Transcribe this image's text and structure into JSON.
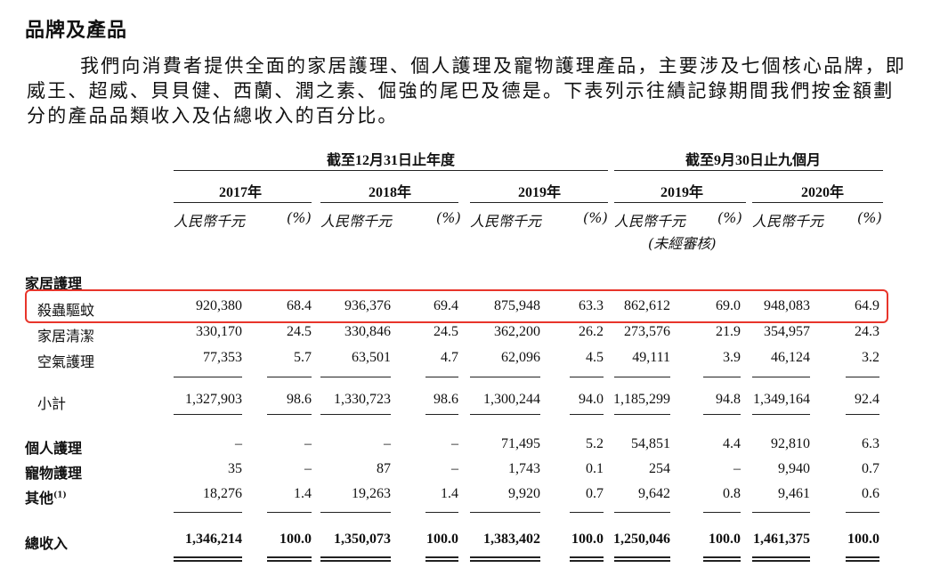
{
  "title": "品牌及產品",
  "paragraph": "我們向消費者提供全面的家居護理、個人護理及寵物護理產品，主要涉及七個核心品牌，即威王、超威、貝貝健、西蘭、潤之素、倔強的尾巴及德是。下表列示往績記錄期間我們按金額劃分的產品品類收入及佔總收入的百分比。",
  "table": {
    "group_year": "截至12月31日止年度",
    "group_9m": "截至9月30日止九個月",
    "years": [
      "2017年",
      "2018年",
      "2019年",
      "2019年",
      "2020年"
    ],
    "unit_amount": "人民幣千元",
    "unit_pct": "(%)",
    "unaudited": "(未經審核)",
    "section_home": "家居護理",
    "rows": [
      {
        "label": "殺蟲驅蚊",
        "values": [
          "920,380",
          "68.4",
          "936,376",
          "69.4",
          "875,948",
          "63.3",
          "862,612",
          "69.0",
          "948,083",
          "64.9"
        ]
      },
      {
        "label": "家居清潔",
        "values": [
          "330,170",
          "24.5",
          "330,846",
          "24.5",
          "362,200",
          "26.2",
          "273,576",
          "21.9",
          "354,957",
          "24.3"
        ]
      },
      {
        "label": "空氣護理",
        "values": [
          "77,353",
          "5.7",
          "63,501",
          "4.7",
          "62,096",
          "4.5",
          "49,111",
          "3.9",
          "46,124",
          "3.2"
        ]
      },
      {
        "label": "小計",
        "values": [
          "1,327,903",
          "98.6",
          "1,330,723",
          "98.6",
          "1,300,244",
          "94.0",
          "1,185,299",
          "94.8",
          "1,349,164",
          "92.4"
        ]
      },
      {
        "label": "個人護理",
        "values": [
          "–",
          "–",
          "–",
          "–",
          "71,495",
          "5.2",
          "54,851",
          "4.4",
          "92,810",
          "6.3"
        ]
      },
      {
        "label": "寵物護理",
        "values": [
          "35",
          "–",
          "87",
          "–",
          "1,743",
          "0.1",
          "254",
          "–",
          "9,940",
          "0.7"
        ]
      },
      {
        "label": "其他",
        "values": [
          "18,276",
          "1.4",
          "19,263",
          "1.4",
          "9,920",
          "0.7",
          "9,642",
          "0.8",
          "9,461",
          "0.6"
        ]
      },
      {
        "label": "總收入",
        "values": [
          "1,346,214",
          "100.0",
          "1,350,073",
          "100.0",
          "1,383,402",
          "100.0",
          "1,250,046",
          "100.0",
          "1,461,375",
          "100.0"
        ]
      }
    ],
    "footnote_mark": "(1)"
  }
}
